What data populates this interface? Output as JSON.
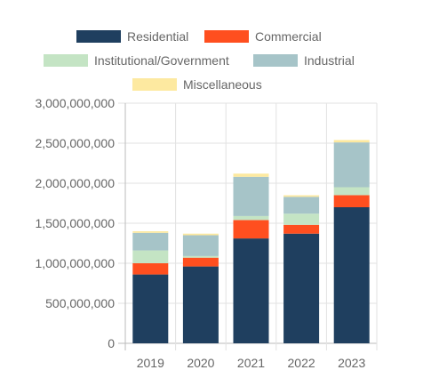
{
  "chart_data": {
    "type": "bar",
    "stacked": true,
    "categories": [
      "2019",
      "2020",
      "2021",
      "2022",
      "2023"
    ],
    "series": [
      {
        "name": "Residential",
        "color": "#1f3f5f",
        "values": [
          860000000,
          960000000,
          1310000000,
          1370000000,
          1700000000
        ]
      },
      {
        "name": "Commercial",
        "color": "#ff4f1f",
        "values": [
          140000000,
          110000000,
          230000000,
          110000000,
          150000000
        ]
      },
      {
        "name": "Institutional/Government",
        "color": "#c4e4c4",
        "values": [
          160000000,
          20000000,
          50000000,
          140000000,
          100000000
        ]
      },
      {
        "name": "Industrial",
        "color": "#a6c4c8",
        "values": [
          220000000,
          260000000,
          490000000,
          210000000,
          560000000
        ]
      },
      {
        "name": "Miscellaneous",
        "color": "#fde9a0",
        "values": [
          20000000,
          20000000,
          40000000,
          20000000,
          30000000
        ]
      }
    ],
    "ylim": [
      0,
      3000000000
    ],
    "yticks": [
      "3,000,000,000",
      "2,500,000,000",
      "2,000,000,000",
      "1,500,000,000",
      "1,000,000,000",
      "500,000,000",
      "0"
    ],
    "ytick_values": [
      3000000000,
      2500000000,
      2000000000,
      1500000000,
      1000000000,
      500000000,
      0
    ],
    "grid": true,
    "legend_position": "top"
  }
}
